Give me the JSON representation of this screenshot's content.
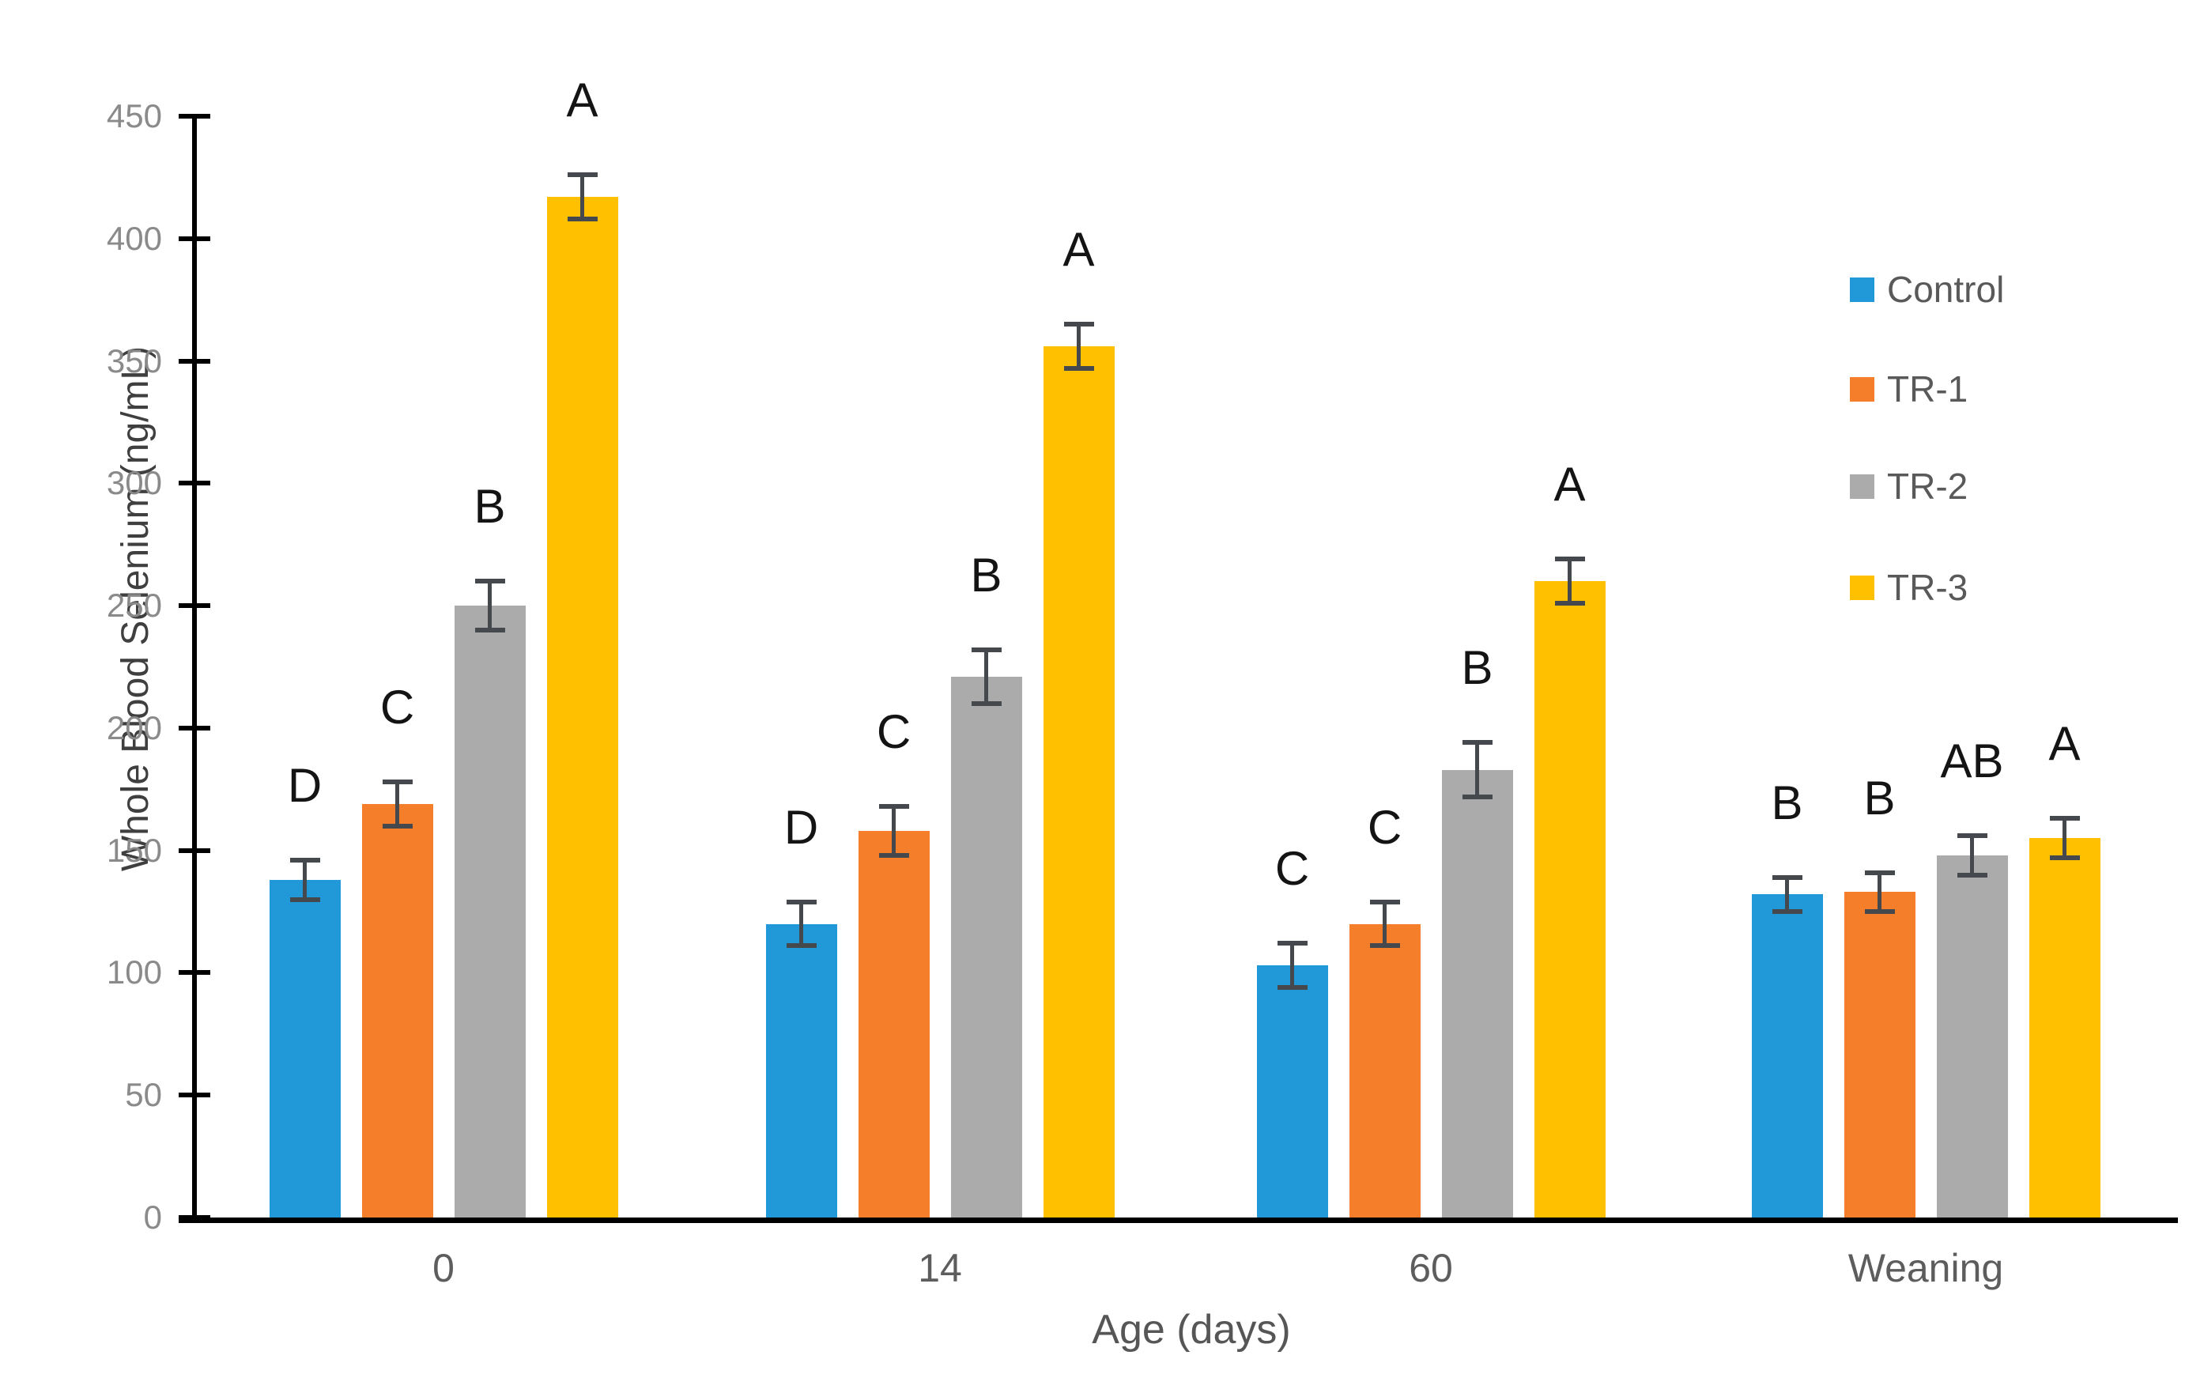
{
  "chart_data": {
    "type": "bar",
    "title": "",
    "xlabel": "Age (days)",
    "ylabel": "Whole Blood Selenium (ng/mL)",
    "ylim": [
      0,
      450
    ],
    "ytick_step": 50,
    "ytick_labels": [
      "0",
      "50",
      "100",
      "150",
      "200",
      "250",
      "300",
      "350",
      "400",
      "450"
    ],
    "categories": [
      "0",
      "14",
      "60",
      "Weaning"
    ],
    "grid": false,
    "legend_position": "upper-right",
    "error_bar_color": "#45494e",
    "series": [
      {
        "name": "Control",
        "color": "#2199d8",
        "values": [
          138,
          120,
          103,
          132
        ],
        "errors": [
          8,
          9,
          9,
          7
        ],
        "letters": [
          "D",
          "D",
          "C",
          "B"
        ]
      },
      {
        "name": "TR-1",
        "color": "#f57e2b",
        "values": [
          169,
          158,
          120,
          133
        ],
        "errors": [
          9,
          10,
          9,
          8
        ],
        "letters": [
          "C",
          "C",
          "C",
          "B"
        ]
      },
      {
        "name": "TR-2",
        "color": "#ababab",
        "values": [
          250,
          221,
          183,
          148
        ],
        "errors": [
          10,
          11,
          11,
          8
        ],
        "letters": [
          "B",
          "B",
          "B",
          "AB"
        ]
      },
      {
        "name": "TR-3",
        "color": "#ffc000",
        "values": [
          417,
          356,
          260,
          155
        ],
        "errors": [
          9,
          9,
          9,
          8
        ],
        "letters": [
          "A",
          "A",
          "A",
          "A"
        ]
      }
    ]
  }
}
